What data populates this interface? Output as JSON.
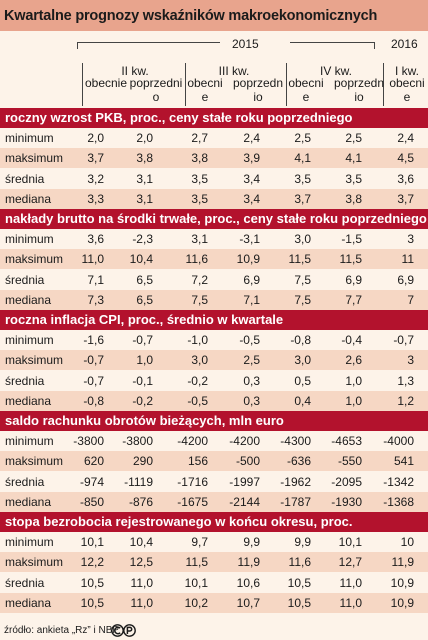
{
  "title": "Kwartalne prognozy wskaźników makroekonomicznych",
  "years": {
    "y2015": "2015",
    "y2016": "2016"
  },
  "quarters": [
    "II kw.",
    "III kw.",
    "IV kw.",
    "I kw."
  ],
  "col_headers": [
    "obecnie",
    "poprzednio",
    "obecnie",
    "poprzednio",
    "obecnie",
    "poprzednio",
    "obecnie"
  ],
  "sections": [
    {
      "title": "roczny wzrost PKB, proc., ceny stałe roku poprzedniego",
      "rows": [
        {
          "label": "minimum",
          "values": [
            "2,0",
            "2,0",
            "2,7",
            "2,4",
            "2,5",
            "2,5",
            "2,4"
          ]
        },
        {
          "label": "maksimum",
          "values": [
            "3,7",
            "3,8",
            "3,8",
            "3,9",
            "4,1",
            "4,1",
            "4,5"
          ]
        },
        {
          "label": "średnia",
          "values": [
            "3,2",
            "3,1",
            "3,5",
            "3,4",
            "3,5",
            "3,5",
            "3,6"
          ]
        },
        {
          "label": "mediana",
          "values": [
            "3,3",
            "3,1",
            "3,5",
            "3,4",
            "3,7",
            "3,8",
            "3,7"
          ]
        }
      ]
    },
    {
      "title": "nakłady brutto na środki trwałe, proc., ceny stałe roku poprzedniego",
      "rows": [
        {
          "label": "minimum",
          "values": [
            "3,6",
            "-2,3",
            "3,1",
            "-3,1",
            "3,0",
            "-1,5",
            "3"
          ]
        },
        {
          "label": "maksimum",
          "values": [
            "11,0",
            "10,4",
            "11,6",
            "10,9",
            "11,5",
            "11,5",
            "11"
          ]
        },
        {
          "label": "średnia",
          "values": [
            "7,1",
            "6,5",
            "7,2",
            "6,9",
            "7,5",
            "6,9",
            "6,9"
          ]
        },
        {
          "label": "mediana",
          "values": [
            "7,3",
            "6,5",
            "7,5",
            "7,1",
            "7,5",
            "7,7",
            "7"
          ]
        }
      ]
    },
    {
      "title": "roczna inflacja CPI, proc., średnio w kwartale",
      "rows": [
        {
          "label": "minimum",
          "values": [
            "-1,6",
            "-0,7",
            "-1,0",
            "-0,5",
            "-0,8",
            "-0,4",
            "-0,7"
          ]
        },
        {
          "label": "maksimum",
          "values": [
            "-0,7",
            "1,0",
            "3,0",
            "2,5",
            "3,0",
            "2,6",
            "3"
          ]
        },
        {
          "label": "średnia",
          "values": [
            "-0,7",
            "-0,1",
            "-0,2",
            "0,3",
            "0,5",
            "1,0",
            "1,3"
          ]
        },
        {
          "label": "mediana",
          "values": [
            "-0,8",
            "-0,2",
            "-0,5",
            "0,3",
            "0,4",
            "1,0",
            "1,2"
          ]
        }
      ]
    },
    {
      "title": "saldo rachunku obrotów bieżących, mln euro",
      "rows": [
        {
          "label": "minimum",
          "values": [
            "-3800",
            "-3800",
            "-4200",
            "-4200",
            "-4300",
            "-4653",
            "-4000"
          ]
        },
        {
          "label": "maksimum",
          "values": [
            "620",
            "290",
            "156",
            "-500",
            "-636",
            "-550",
            "541"
          ]
        },
        {
          "label": "średnia",
          "values": [
            "-974",
            "-1119",
            "-1716",
            "-1997",
            "-1962",
            "-2095",
            "-1342"
          ]
        },
        {
          "label": "mediana",
          "values": [
            "-850",
            "-876",
            "-1675",
            "-2144",
            "-1787",
            "-1930",
            "-1368"
          ]
        }
      ]
    },
    {
      "title": "stopa bezrobocia rejestrowanego w końcu okresu, proc.",
      "rows": [
        {
          "label": "minimum",
          "values": [
            "10,1",
            "10,4",
            "9,7",
            "9,9",
            "9,9",
            "10,1",
            "10"
          ]
        },
        {
          "label": "maksimum",
          "values": [
            "12,2",
            "12,5",
            "11,5",
            "11,9",
            "11,6",
            "12,7",
            "11,9"
          ]
        },
        {
          "label": "średnia",
          "values": [
            "10,5",
            "11,0",
            "10,1",
            "10,6",
            "10,5",
            "11,0",
            "10,9"
          ]
        },
        {
          "label": "mediana",
          "values": [
            "10,5",
            "11,0",
            "10,2",
            "10,7",
            "10,5",
            "11,0",
            "10,9"
          ]
        }
      ]
    }
  ],
  "source": "źródło: ankieta „Rz” i NBP",
  "colors": {
    "title_bg": "#e8a48d",
    "section_bg": "#b3122d",
    "row_alt": "#f6d7c4",
    "page_bg": "#fdf3e9"
  }
}
